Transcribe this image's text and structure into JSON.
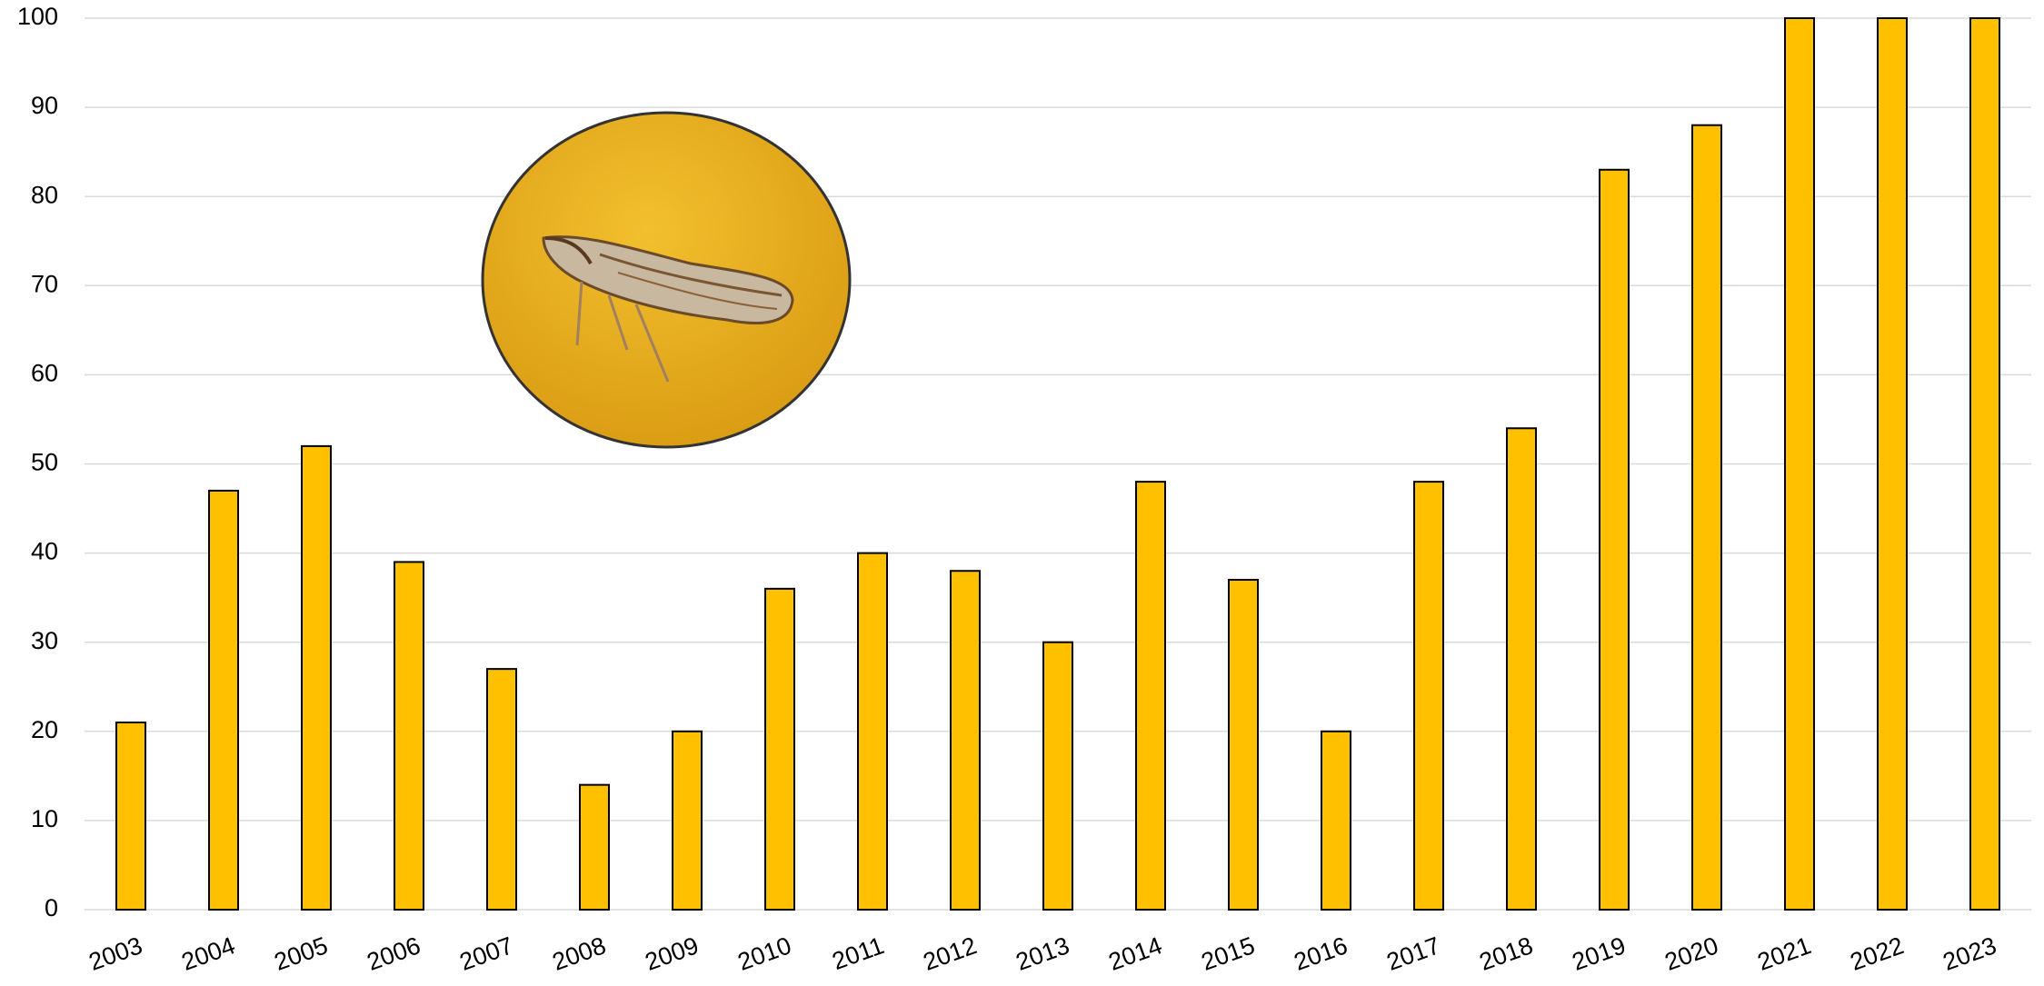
{
  "chart_data": {
    "type": "bar",
    "categories": [
      "2003",
      "2004",
      "2005",
      "2006",
      "2007",
      "2008",
      "2009",
      "2010",
      "2011",
      "2012",
      "2013",
      "2014",
      "2015",
      "2016",
      "2017",
      "2018",
      "2019",
      "2020",
      "2021",
      "2022",
      "2023"
    ],
    "values": [
      21,
      47,
      52,
      39,
      27,
      14,
      20,
      36,
      40,
      38,
      30,
      48,
      37,
      20,
      48,
      54,
      83,
      88,
      100,
      100,
      100
    ],
    "color": "#ffc000",
    "ylim": [
      0,
      100
    ],
    "yticks": [
      0,
      10,
      20,
      30,
      40,
      50,
      60,
      70,
      80,
      90,
      100
    ],
    "grid": true
  }
}
